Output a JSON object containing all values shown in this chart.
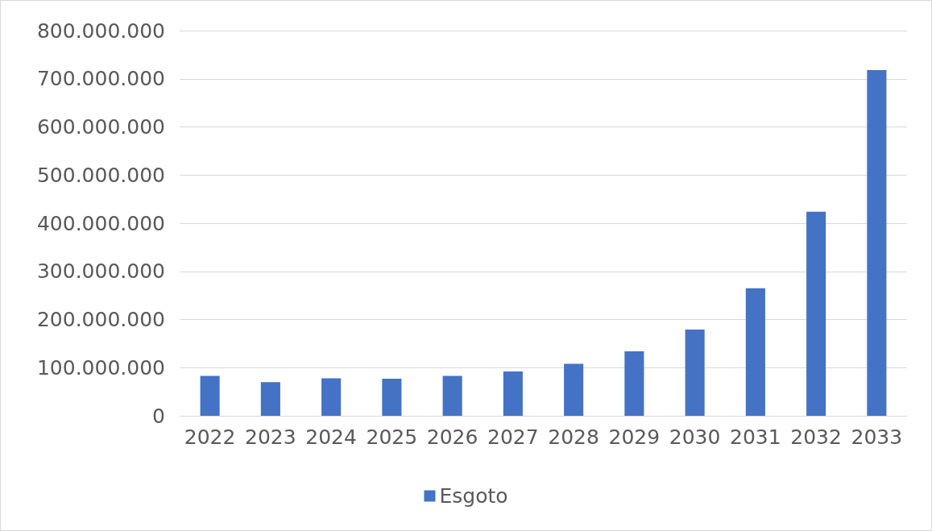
{
  "chart_data": {
    "type": "bar",
    "categories": [
      "2022",
      "2023",
      "2024",
      "2025",
      "2026",
      "2027",
      "2028",
      "2029",
      "2030",
      "2031",
      "2032",
      "2033"
    ],
    "series": [
      {
        "name": "Esgoto",
        "color": "#4472c4",
        "values": [
          83000000,
          70000000,
          78000000,
          77000000,
          83000000,
          92000000,
          108000000,
          134000000,
          179000000,
          265000000,
          424000000,
          718000000
        ]
      }
    ],
    "ylim": [
      0,
      800000000
    ],
    "yticks": [
      0,
      {
        "value": 100000000,
        "label": "100.000.000"
      },
      {
        "value": 200000000,
        "label": "200.000.000"
      },
      {
        "value": 300000000,
        "label": "300.000.000"
      },
      {
        "value": 400000000,
        "label": "400.000.000"
      },
      {
        "value": 500000000,
        "label": "500.000.000"
      },
      {
        "value": 600000000,
        "label": "600.000.000"
      },
      {
        "value": 700000000,
        "label": "700.000.000"
      },
      {
        "value": 800000000,
        "label": "800.000.000"
      }
    ],
    "grid": "y",
    "legend": "bottom"
  }
}
